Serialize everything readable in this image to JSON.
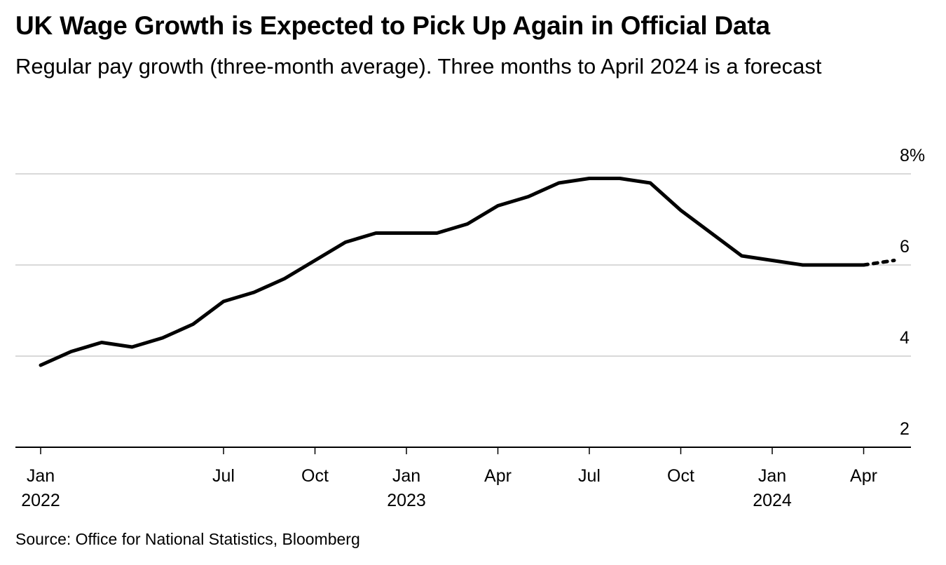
{
  "title": "UK Wage Growth is Expected to Pick Up Again in Official Data",
  "subtitle": "Regular pay growth (three-month average). Three months to April 2024 is a forecast",
  "source": "Source: Office for National Statistics, Bloomberg",
  "colors": {
    "line": "#000000",
    "grid": "#d9d9d9",
    "axis": "#000000"
  },
  "chart_data": {
    "type": "line",
    "y_unit": "%",
    "ylim": [
      2,
      8
    ],
    "y_ticks": [
      {
        "value": 8,
        "label": "8%"
      },
      {
        "value": 6,
        "label": "6"
      },
      {
        "value": 4,
        "label": "4"
      },
      {
        "value": 2,
        "label": "2"
      }
    ],
    "gridlines": [
      8,
      6,
      4
    ],
    "grid": true,
    "x_ticks": [
      {
        "date": "2022-01",
        "label": "Jan",
        "year": "2022"
      },
      {
        "date": "2022-07",
        "label": "Jul",
        "year": ""
      },
      {
        "date": "2022-10",
        "label": "Oct",
        "year": ""
      },
      {
        "date": "2023-01",
        "label": "Jan",
        "year": "2023"
      },
      {
        "date": "2023-04",
        "label": "Apr",
        "year": ""
      },
      {
        "date": "2023-07",
        "label": "Jul",
        "year": ""
      },
      {
        "date": "2023-10",
        "label": "Oct",
        "year": ""
      },
      {
        "date": "2024-01",
        "label": "Jan",
        "year": "2024"
      },
      {
        "date": "2024-04",
        "label": "Apr",
        "year": ""
      }
    ],
    "xlim": [
      "2021-12",
      "2024-07"
    ],
    "series": [
      {
        "style": "solid",
        "x": [
          "2022-01",
          "2022-02",
          "2022-03",
          "2022-04",
          "2022-05",
          "2022-06",
          "2022-07",
          "2022-08",
          "2022-09",
          "2022-10",
          "2022-11",
          "2022-12",
          "2023-01",
          "2023-02",
          "2023-03",
          "2023-04",
          "2023-05",
          "2023-06",
          "2023-07",
          "2023-08",
          "2023-09",
          "2023-10",
          "2023-11",
          "2023-12",
          "2024-01",
          "2024-02",
          "2024-03",
          "2024-04"
        ],
        "y": [
          3.8,
          4.1,
          4.3,
          4.2,
          4.4,
          4.7,
          5.2,
          5.4,
          5.7,
          6.1,
          6.5,
          6.7,
          6.7,
          6.7,
          6.9,
          7.3,
          7.5,
          7.8,
          7.9,
          7.9,
          7.8,
          7.2,
          6.7,
          6.2,
          6.1,
          6.0,
          6.0,
          6.0
        ]
      },
      {
        "style": "dotted",
        "x": [
          "2024-04",
          "2024-05"
        ],
        "y": [
          6.0,
          6.1
        ]
      }
    ]
  }
}
